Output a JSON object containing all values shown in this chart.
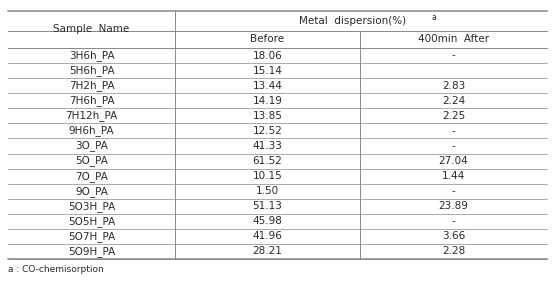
{
  "col_sample": "Sample  Name",
  "col_metal": "Metal  dispersion(%)",
  "col_super": "a",
  "col_before": "Before",
  "col_after": "400min  After",
  "footnote": "a : CO-chemisorption",
  "rows": [
    [
      "3H6h_PA",
      "18.06",
      "-"
    ],
    [
      "5H6h_PA",
      "15.14",
      ""
    ],
    [
      "7H2h_PA",
      "13.44",
      "2.83"
    ],
    [
      "7H6h_PA",
      "14.19",
      "2.24"
    ],
    [
      "7H12h_PA",
      "13.85",
      "2.25"
    ],
    [
      "9H6h_PA",
      "12.52",
      "-"
    ],
    [
      "3O_PA",
      "41.33",
      "-"
    ],
    [
      "5O_PA",
      "61.52",
      "27.04"
    ],
    [
      "7O_PA",
      "10.15",
      "1.44"
    ],
    [
      "9O_PA",
      "1.50",
      "-"
    ],
    [
      "5O3H_PA",
      "51.13",
      "23.89"
    ],
    [
      "5O5H_PA",
      "45.98",
      "-"
    ],
    [
      "5O7H_PA",
      "41.96",
      "3.66"
    ],
    [
      "5O9H_PA",
      "28.21",
      "2.28"
    ]
  ],
  "bg_color": "#ffffff",
  "text_color": "#2a2a2a",
  "line_color": "#888888",
  "font_size": 7.5
}
